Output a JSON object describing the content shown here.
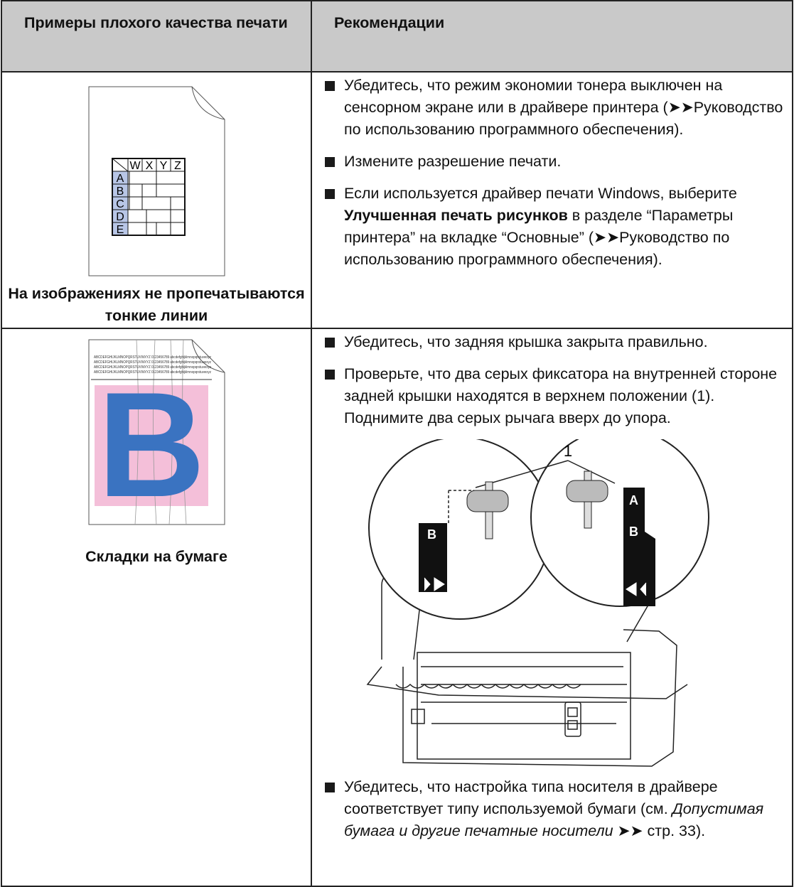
{
  "header": {
    "col1": "Примеры плохого качества печати",
    "col2": "Рекомендации"
  },
  "rows": [
    {
      "illustration": {
        "columns": [
          "W",
          "X",
          "Y",
          "Z"
        ],
        "rows": [
          "A",
          "B",
          "C",
          "D",
          "E"
        ]
      },
      "caption": "На изображениях не пропечатываются тонкие линии",
      "recommendations": [
        {
          "parts": [
            {
              "text": "Убедитесь, что режим экономии тонера выключен на сенсорном экране или в драйвере принтера (➤➤Руководство по использованию программного обеспечения)."
            }
          ]
        },
        {
          "parts": [
            {
              "text": "Измените разрешение печати."
            }
          ]
        },
        {
          "parts": [
            {
              "text": "Если используется драйвер печати Windows, выберите "
            },
            {
              "text": "Улучшенная печать рисунков",
              "style": "bold"
            },
            {
              "text": " в разделе “Параметры принтера” на вкладке “Основные” (➤➤Руководство по использованию программного обеспечения)."
            }
          ]
        }
      ]
    },
    {
      "illustration": {
        "text_lines": [
          "ABCDEFGHIJKLMNOPQRSTUVWXYZ 0123456789 abcdefghijklmnopqrstuvwxyz",
          "ABCDEFGHIJKLMNOPQRSTUVWXYZ 0123456789 abcdefghijklmnopqrstuvwxyz",
          "ABCDEFGHIJKLMNOPQRSTUVWXYZ 0123456789 abcdefghijklmnopqrstuvwxyz",
          "ABCDEFGHIJKLMNOPQRSTUVWXYZ 0123456789 abcdefghijklmnopqrstuvwxyz"
        ],
        "letter": "B"
      },
      "caption": "Складки на бумаге",
      "recommendations": [
        {
          "parts": [
            {
              "text": "Убедитесь, что задняя крышка закрыта правильно."
            }
          ]
        },
        {
          "parts": [
            {
              "text": "Проверьте, что два серых фиксатора на внутренней стороне задней крышки находятся в верхнем положении (1). Поднимите два серых рычага вверх до упора."
            }
          ],
          "figure": {
            "callout": "1",
            "left_label": "B",
            "right_labels": [
              "A",
              "B"
            ]
          }
        },
        {
          "parts": [
            {
              "text": "Убедитесь, что настройка типа носителя в драйвере соответствует типу используемой бумаги (см. "
            },
            {
              "text": "Допустимая бумага и другие печатные носители",
              "style": "italic"
            },
            {
              "text": " ➤➤ стр. 33)."
            }
          ]
        }
      ]
    }
  ]
}
